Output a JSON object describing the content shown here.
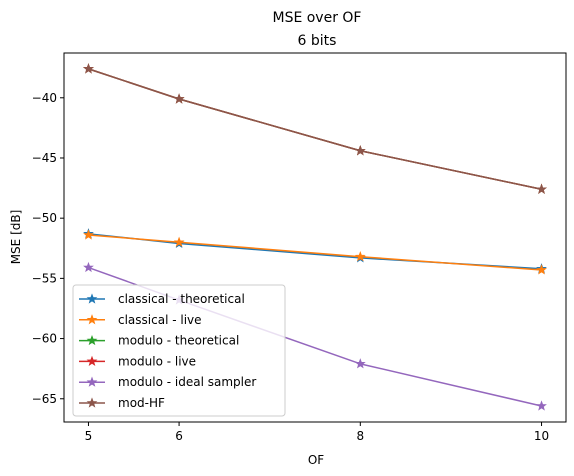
{
  "chart_data": {
    "type": "line",
    "title": "MSE over OF",
    "subtitle": "6 bits",
    "xlabel": "OF",
    "ylabel": "MSE [dB]",
    "x": [
      5,
      6,
      8,
      10
    ],
    "xticks": [
      5,
      6,
      8,
      10
    ],
    "yticks": [
      -40,
      -45,
      -50,
      -55,
      -60,
      -65
    ],
    "xlim": [
      4.73,
      10.27
    ],
    "ylim": [
      -66.93,
      -36.28
    ],
    "grid": false,
    "legend_position": "lower-left",
    "marker": "star",
    "series": [
      {
        "name": "classical - theoretical",
        "color": "#1f77b4",
        "values": [
          -51.3,
          -52.1,
          -53.3,
          -54.2
        ]
      },
      {
        "name": "classical - live",
        "color": "#ff7f0e",
        "values": [
          -51.4,
          -52.0,
          -53.2,
          -54.3
        ]
      },
      {
        "name": "modulo - theoretical",
        "color": "#2ca02c",
        "values": [
          -37.6,
          -40.1,
          -44.4,
          -47.6
        ]
      },
      {
        "name": "modulo - live",
        "color": "#d62728",
        "values": [
          -37.6,
          -40.1,
          -44.4,
          -47.6
        ]
      },
      {
        "name": "modulo - ideal sampler",
        "color": "#9467bd",
        "values": [
          -54.1,
          -56.8,
          -62.1,
          -65.6
        ]
      },
      {
        "name": "mod-HF",
        "color": "#8c564b",
        "values": [
          -37.6,
          -40.1,
          -44.4,
          -47.6
        ]
      }
    ]
  }
}
